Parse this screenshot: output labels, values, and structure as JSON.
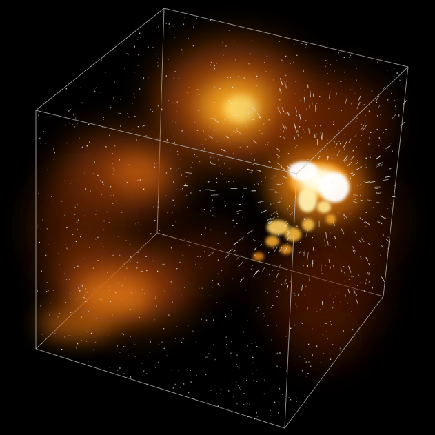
{
  "scene": {
    "background_color": "#000000",
    "volume_colormap": [
      "#2a0c00",
      "#7a2c00",
      "#d86a10",
      "#ffa020",
      "#ffd060",
      "#ffffff"
    ],
    "particle_color": "#e6e6e6",
    "bounding_box_color": "#bdbdbd",
    "has_bounding_box": true,
    "has_particle_field": true,
    "has_volume_render": true
  }
}
